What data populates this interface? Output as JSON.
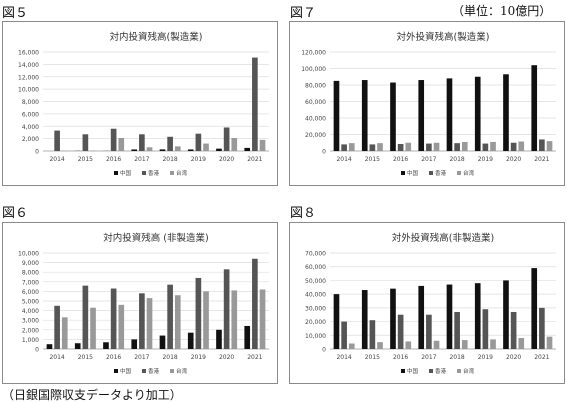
{
  "figures": [
    {
      "label": "図５"
    },
    {
      "label": "図７"
    },
    {
      "label": "図６"
    },
    {
      "label": "図８"
    }
  ],
  "unit_note": "（単位：10億円）",
  "source_note": "（日銀国際収支データより加工）",
  "chart_data": [
    {
      "type": "bar",
      "title": "対内投資残高(製造業)",
      "categories": [
        "2014",
        "2015",
        "2016",
        "2017",
        "2018",
        "2019",
        "2020",
        "2021"
      ],
      "ylim": [
        0,
        16000
      ],
      "ystep": 2000,
      "grid": true,
      "legend": "bottom",
      "series": [
        {
          "name": "中国",
          "color": "#111111",
          "values": [
            0,
            30,
            20,
            250,
            260,
            250,
            380,
            500
          ]
        },
        {
          "name": "香港",
          "color": "#555555",
          "values": [
            3300,
            2700,
            3600,
            2700,
            2300,
            2800,
            3800,
            15100
          ]
        },
        {
          "name": "台湾",
          "color": "#999999",
          "values": [
            50,
            60,
            2100,
            600,
            750,
            1200,
            2100,
            1800
          ]
        }
      ]
    },
    {
      "type": "bar",
      "title": "対外投資残高(製造業)",
      "categories": [
        "2014",
        "2015",
        "2016",
        "2017",
        "2018",
        "2019",
        "2020",
        "2021"
      ],
      "ylim": [
        0,
        120000
      ],
      "ystep": 20000,
      "grid": true,
      "legend": "bottom",
      "series": [
        {
          "name": "中国",
          "color": "#111111",
          "values": [
            85000,
            86000,
            83000,
            86000,
            88000,
            90000,
            93000,
            104000
          ]
        },
        {
          "name": "香港",
          "color": "#555555",
          "values": [
            8000,
            8000,
            8500,
            9000,
            9500,
            9000,
            10000,
            14000
          ]
        },
        {
          "name": "台湾",
          "color": "#999999",
          "values": [
            9500,
            9500,
            10000,
            10000,
            11000,
            11000,
            11500,
            12000
          ]
        }
      ]
    },
    {
      "type": "bar",
      "title": "対内投資残高 (非製造業)",
      "categories": [
        "2014",
        "2015",
        "2016",
        "2017",
        "2018",
        "2019",
        "2020",
        "2021"
      ],
      "ylim": [
        0,
        10000
      ],
      "ystep": 1000,
      "grid": true,
      "legend": "bottom",
      "series": [
        {
          "name": "中国",
          "color": "#111111",
          "values": [
            500,
            600,
            700,
            1000,
            1400,
            1700,
            2000,
            2400
          ]
        },
        {
          "name": "香港",
          "color": "#555555",
          "values": [
            4500,
            6600,
            6300,
            5800,
            6700,
            7400,
            8300,
            9400
          ]
        },
        {
          "name": "台湾",
          "color": "#999999",
          "values": [
            3300,
            4300,
            4600,
            5300,
            5600,
            6000,
            6100,
            6200
          ]
        }
      ]
    },
    {
      "type": "bar",
      "title": "対外投資残高(非製造業)",
      "categories": [
        "2014",
        "2015",
        "2016",
        "2017",
        "2018",
        "2019",
        "2020",
        "2021"
      ],
      "ylim": [
        0,
        70000
      ],
      "ystep": 10000,
      "grid": true,
      "legend": "bottom",
      "series": [
        {
          "name": "中国",
          "color": "#111111",
          "values": [
            40000,
            43000,
            44000,
            46000,
            47000,
            48000,
            50000,
            59000
          ]
        },
        {
          "name": "香港",
          "color": "#555555",
          "values": [
            20000,
            21000,
            25000,
            25000,
            27000,
            29000,
            27000,
            30000
          ]
        },
        {
          "name": "台湾",
          "color": "#999999",
          "values": [
            4000,
            5000,
            5500,
            6000,
            6500,
            7000,
            8000,
            9000
          ]
        }
      ]
    }
  ]
}
